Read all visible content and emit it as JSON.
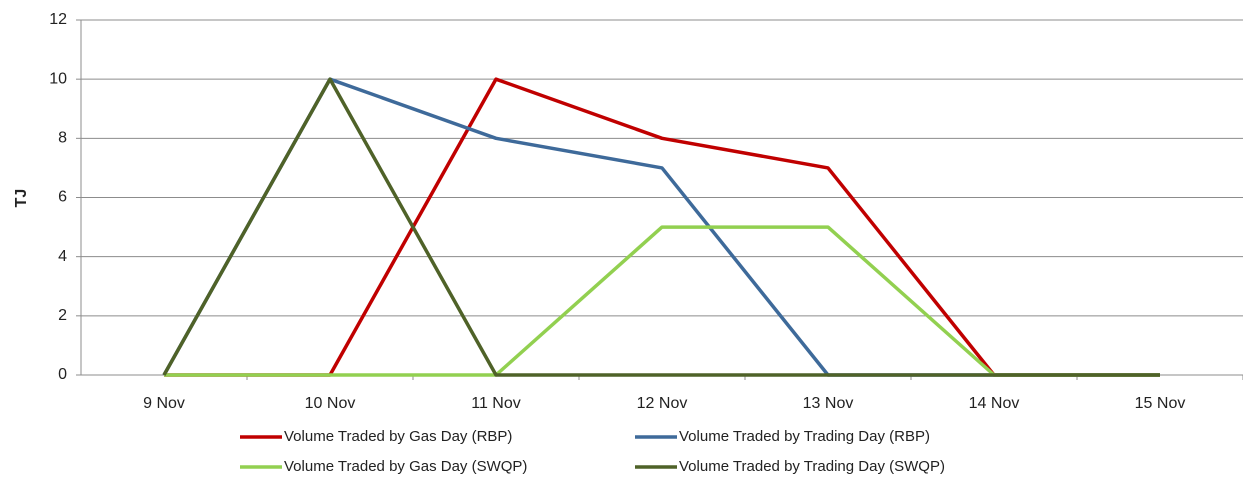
{
  "chart_data": {
    "type": "line",
    "y_label": "TJ",
    "categories": [
      "9 Nov",
      "10 Nov",
      "11 Nov",
      "12 Nov",
      "13 Nov",
      "14 Nov",
      "15 Nov"
    ],
    "series": [
      {
        "name": "Volume Traded by Gas Day (RBP)",
        "color": "#c00000",
        "values": [
          0,
          0,
          10,
          8,
          7,
          0,
          0
        ]
      },
      {
        "name": "Volume Traded by Trading Day (RBP)",
        "color": "#3e6a9a",
        "values": [
          0,
          10,
          8,
          7,
          0,
          0,
          0
        ]
      },
      {
        "name": "Volume Traded by Gas Day (SWQP)",
        "color": "#92d050",
        "values": [
          0,
          0,
          0,
          5,
          5,
          0,
          0
        ]
      },
      {
        "name": "Volume Traded by Trading Day (SWQP)",
        "color": "#4f6228",
        "values": [
          0,
          10,
          0,
          0,
          0,
          0,
          0
        ]
      }
    ],
    "ylim": [
      0,
      12
    ],
    "yticks": [
      0,
      2,
      4,
      6,
      8,
      10,
      12
    ],
    "grid": true,
    "legend": "bottom"
  }
}
